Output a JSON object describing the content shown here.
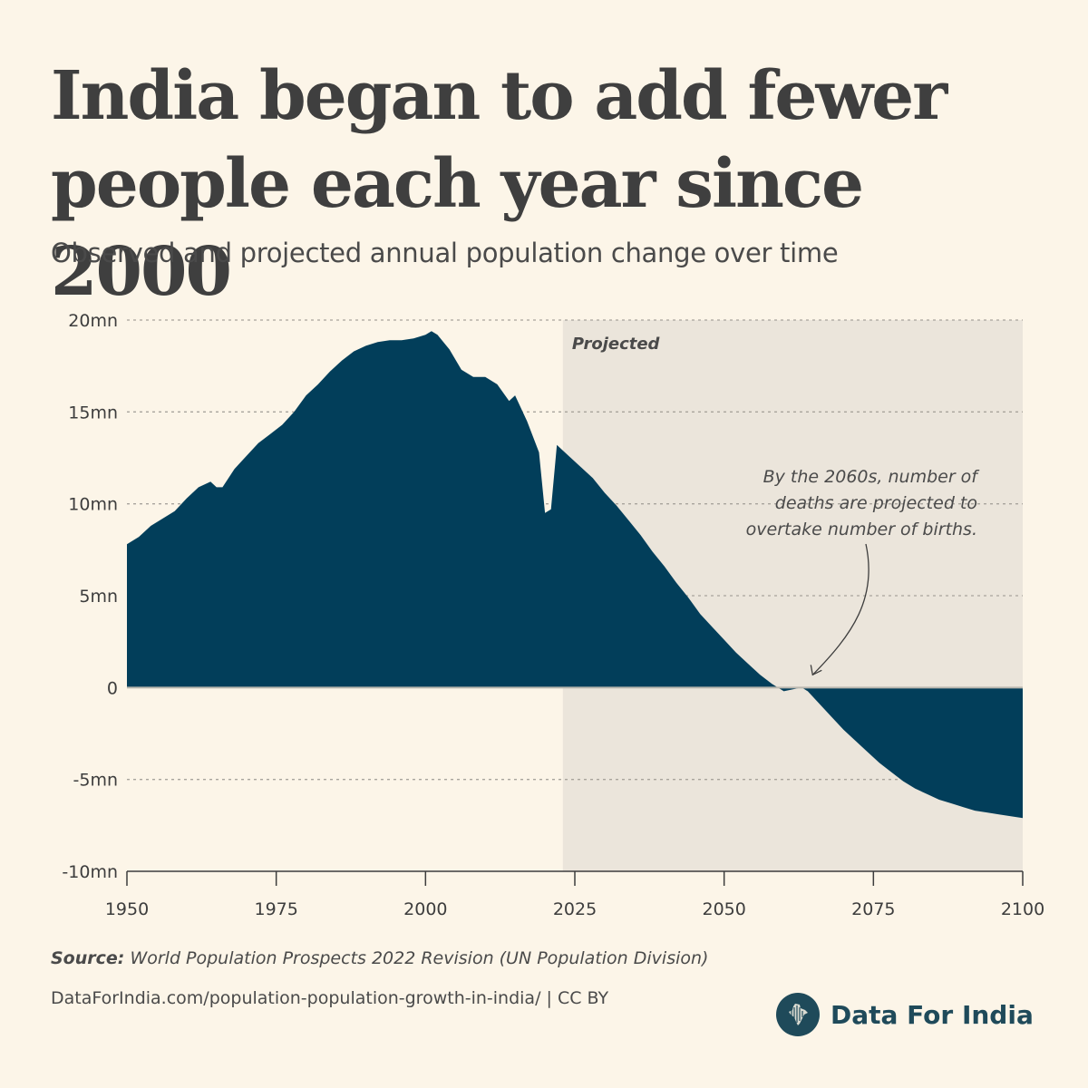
{
  "header": {
    "title": "India began to add fewer people each year since 2000",
    "subtitle": "Observed and projected annual population change over time"
  },
  "chart_data": {
    "type": "area",
    "title": "India began to add fewer people each year since 2000",
    "subtitle": "Observed and projected annual population change over time",
    "xlabel": "",
    "ylabel": "",
    "xlim": [
      1950,
      2100
    ],
    "ylim": [
      -10,
      20
    ],
    "x_ticks": [
      "1950",
      "1975",
      "2000",
      "2025",
      "2050",
      "2075",
      "2100"
    ],
    "y_ticks": [
      {
        "value": 20,
        "label": "20mn"
      },
      {
        "value": 15,
        "label": "15mn"
      },
      {
        "value": 10,
        "label": "10mn"
      },
      {
        "value": 5,
        "label": "5mn"
      },
      {
        "value": 0,
        "label": "0"
      },
      {
        "value": -5,
        "label": "-5mn"
      },
      {
        "value": -10,
        "label": "-10mn"
      }
    ],
    "grid": "horizontal-dashed",
    "color": "#023e5a",
    "projected_shade_color": "#ebe5db",
    "projected_from": 2023,
    "projected_label": "Projected",
    "annotation": {
      "lines": [
        "By the 2060s, number of",
        "deaths are projected to",
        "overtake number of births."
      ],
      "points_to": [
        2063,
        0
      ]
    },
    "series": [
      {
        "values": [
          [
            1950,
            7.8
          ],
          [
            1952,
            8.2
          ],
          [
            1954,
            8.8
          ],
          [
            1956,
            9.2
          ],
          [
            1958,
            9.6
          ],
          [
            1960,
            10.3
          ],
          [
            1962,
            10.9
          ],
          [
            1964,
            11.2
          ],
          [
            1965,
            10.9
          ],
          [
            1966,
            10.9
          ],
          [
            1968,
            11.9
          ],
          [
            1970,
            12.6
          ],
          [
            1972,
            13.3
          ],
          [
            1974,
            13.8
          ],
          [
            1976,
            14.3
          ],
          [
            1978,
            15.0
          ],
          [
            1980,
            15.9
          ],
          [
            1982,
            16.5
          ],
          [
            1984,
            17.2
          ],
          [
            1986,
            17.8
          ],
          [
            1988,
            18.3
          ],
          [
            1990,
            18.6
          ],
          [
            1992,
            18.8
          ],
          [
            1994,
            18.9
          ],
          [
            1996,
            18.9
          ],
          [
            1998,
            19.0
          ],
          [
            2000,
            19.2
          ],
          [
            2001,
            19.4
          ],
          [
            2002,
            19.2
          ],
          [
            2004,
            18.4
          ],
          [
            2006,
            17.3
          ],
          [
            2008,
            16.9
          ],
          [
            2010,
            16.9
          ],
          [
            2012,
            16.5
          ],
          [
            2014,
            15.6
          ],
          [
            2015,
            15.9
          ],
          [
            2017,
            14.5
          ],
          [
            2019,
            12.8
          ],
          [
            2020,
            9.5
          ],
          [
            2021,
            9.7
          ],
          [
            2022,
            13.2
          ],
          [
            2024,
            12.6
          ],
          [
            2026,
            12.0
          ],
          [
            2028,
            11.4
          ],
          [
            2030,
            10.6
          ],
          [
            2032,
            9.9
          ],
          [
            2034,
            9.1
          ],
          [
            2036,
            8.3
          ],
          [
            2038,
            7.4
          ],
          [
            2040,
            6.6
          ],
          [
            2042,
            5.7
          ],
          [
            2044,
            4.9
          ],
          [
            2046,
            4.0
          ],
          [
            2048,
            3.3
          ],
          [
            2050,
            2.6
          ],
          [
            2052,
            1.9
          ],
          [
            2054,
            1.3
          ],
          [
            2056,
            0.7
          ],
          [
            2058,
            0.2
          ],
          [
            2060,
            -0.2
          ],
          [
            2063,
            0.0
          ],
          [
            2064,
            -0.2
          ],
          [
            2066,
            -0.9
          ],
          [
            2068,
            -1.6
          ],
          [
            2070,
            -2.3
          ],
          [
            2072,
            -2.9
          ],
          [
            2074,
            -3.5
          ],
          [
            2076,
            -4.1
          ],
          [
            2078,
            -4.6
          ],
          [
            2080,
            -5.1
          ],
          [
            2082,
            -5.5
          ],
          [
            2084,
            -5.8
          ],
          [
            2086,
            -6.1
          ],
          [
            2088,
            -6.3
          ],
          [
            2090,
            -6.5
          ],
          [
            2092,
            -6.7
          ],
          [
            2094,
            -6.8
          ],
          [
            2096,
            -6.9
          ],
          [
            2098,
            -7.0
          ],
          [
            2100,
            -7.1
          ]
        ]
      }
    ]
  },
  "footer": {
    "source_label": "Source:",
    "source_text": "World Population Prospects 2022 Revision (UN Population Division)",
    "url": "DataForIndia.com/population-population-growth-in-india/ |  CC BY",
    "brand_name": "Data For India",
    "brand_icon": "india-map-icon"
  }
}
